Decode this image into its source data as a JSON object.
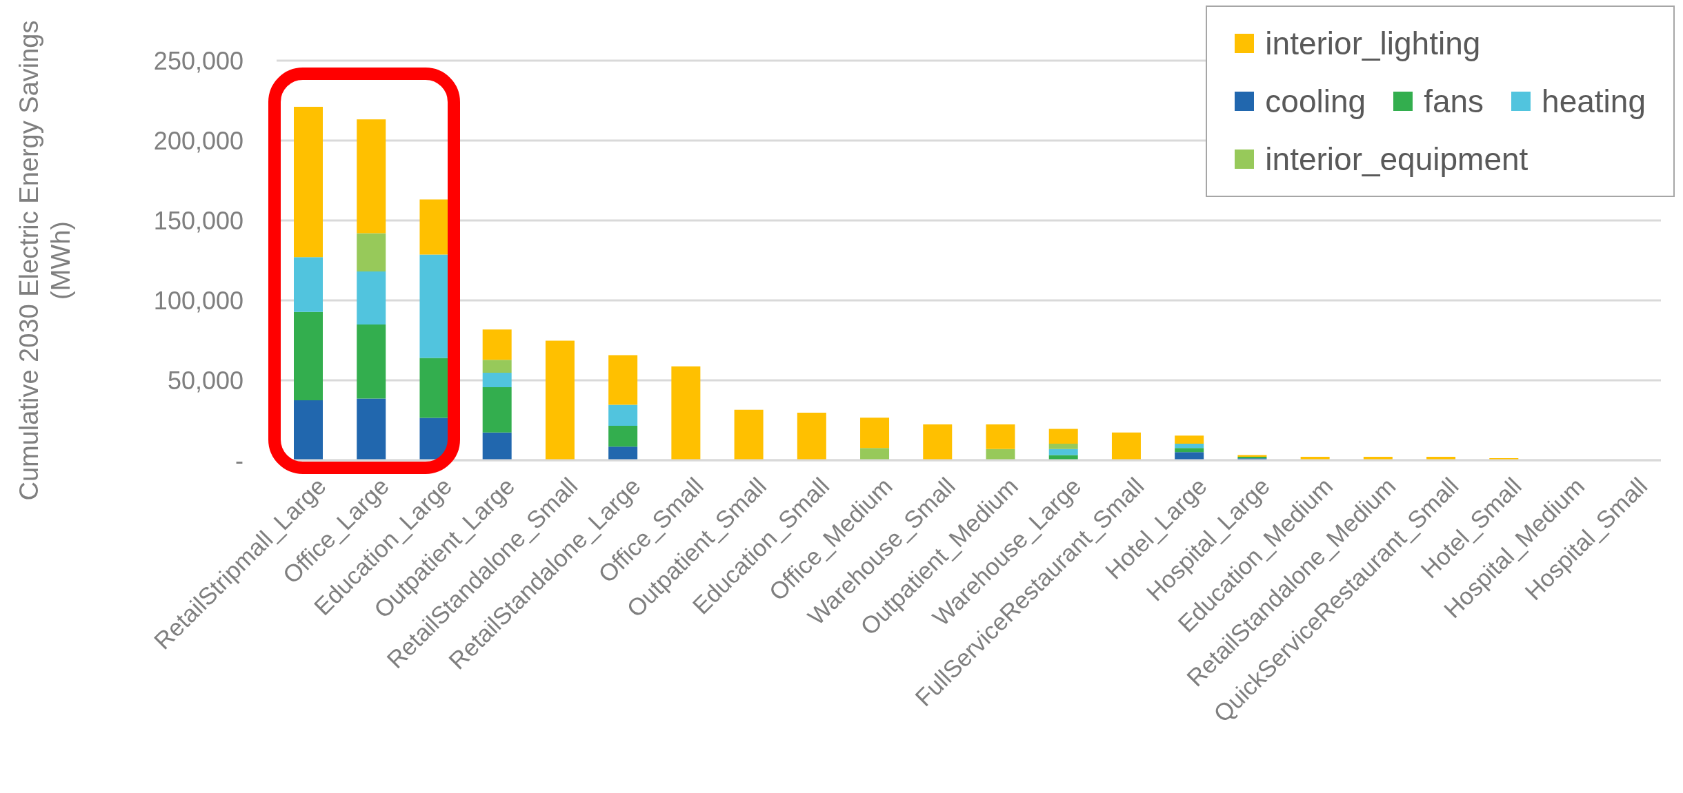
{
  "chart_data": {
    "type": "bar",
    "stacked": true,
    "ylabel": "Cumulative 2030 Electric Energy Savings (MWh)",
    "categories": [
      "RetailStripmall_Large",
      "Office_Large",
      "Education_Large",
      "Outpatient_Large",
      "RetailStandalone_Small",
      "RetailStandalone_Large",
      "Office_Small",
      "Outpatient_Small",
      "Education_Small",
      "Office_Medium",
      "Warehouse_Small",
      "Outpatient_Medium",
      "Warehouse_Large",
      "FullServiceRestaurant_Small",
      "Hotel_Large",
      "Hospital_Large",
      "Education_Medium",
      "RetailStandalone_Medium",
      "QuickServiceRestaurant_Small",
      "Hotel_Small",
      "Hospital_Medium",
      "Hospital_Small"
    ],
    "series": [
      {
        "name": "cooling",
        "color": "#2167ae",
        "values": [
          37500,
          38600,
          26500,
          17400,
          0,
          8500,
          0,
          0,
          0,
          0,
          0,
          0,
          null,
          0,
          5100,
          1200,
          0,
          0,
          0,
          0,
          0,
          0
        ]
      },
      {
        "name": "fans",
        "color": "#33ae4e",
        "values": [
          55300,
          46300,
          37500,
          28300,
          0,
          13000,
          0,
          0,
          0,
          0,
          0,
          0,
          3200,
          0,
          2600,
          1000,
          0,
          0,
          0,
          0,
          0,
          0
        ]
      },
      {
        "name": "heating",
        "color": "#51c4de",
        "values": [
          34300,
          33200,
          64700,
          9000,
          0,
          13200,
          0,
          0,
          0,
          0,
          0,
          0,
          3800,
          0,
          2600,
          0,
          0,
          0,
          0,
          0,
          0,
          0
        ]
      },
      {
        "name": "interior_equipment",
        "color": "#97c95a",
        "values": [
          0,
          23900,
          0,
          8100,
          0,
          0,
          0,
          0,
          0,
          7600,
          0,
          7000,
          3300,
          0,
          0,
          0,
          0,
          0,
          0,
          0,
          0,
          0
        ]
      },
      {
        "name": "interior_lighting",
        "color": "#ffc000",
        "values": [
          94000,
          71300,
          34400,
          19000,
          74800,
          31000,
          58700,
          31600,
          29700,
          19000,
          22400,
          15400,
          9300,
          17300,
          5100,
          1000,
          2200,
          2200,
          2200,
          1300,
          0,
          0
        ]
      }
    ],
    "ylim": [
      0,
      250000
    ],
    "yticks": [
      {
        "value": 0,
        "label": "-"
      },
      {
        "value": 50000,
        "label": "50,000"
      },
      {
        "value": 100000,
        "label": "100,000"
      },
      {
        "value": 150000,
        "label": "150,000"
      },
      {
        "value": 200000,
        "label": "200,000"
      },
      {
        "value": 250000,
        "label": "250,000"
      }
    ],
    "grid": "y",
    "legend": "top right"
  }
}
